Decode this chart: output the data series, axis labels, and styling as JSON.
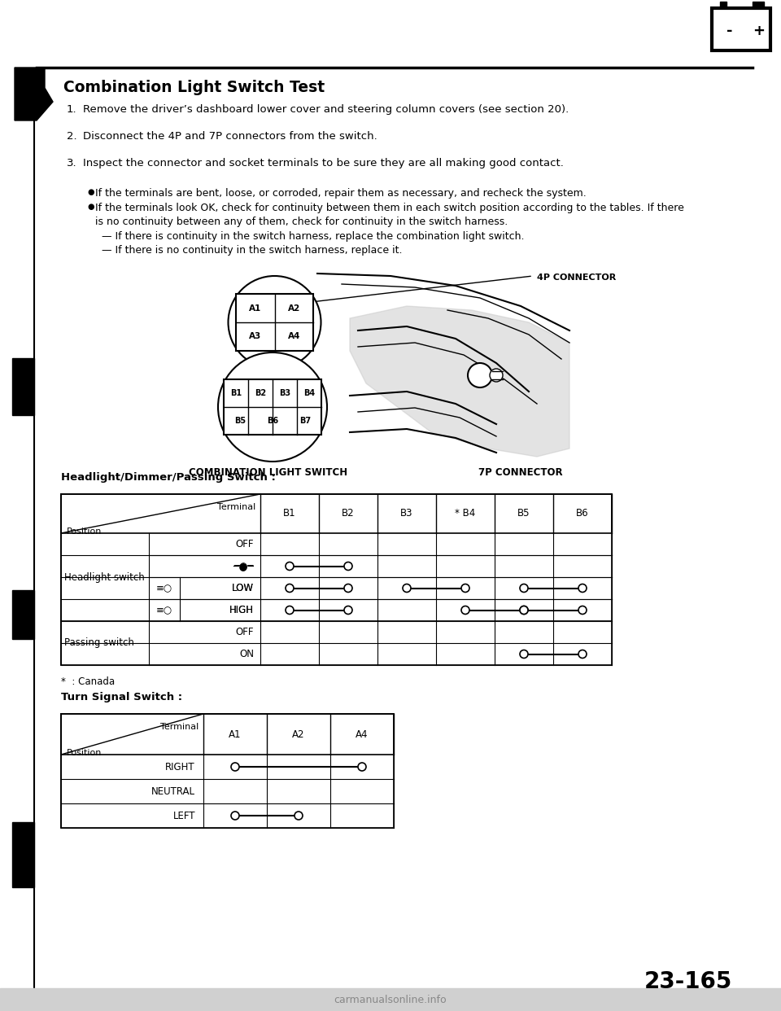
{
  "title": "Combination Light Switch Test",
  "page_number": "23-165",
  "steps": [
    "Remove the driver’s dashboard lower cover and steering column covers (see section 20).",
    "Disconnect the 4P and 7P connectors from the switch.",
    "Inspect the connector and socket terminals to be sure they are all making good contact."
  ],
  "bullets": [
    "If the terminals are bent, loose, or corroded, repair them as necessary, and recheck the system.",
    "If the terminals look OK, check for continuity between them in each switch position according to the tables. If there is no continuity between any of them, check for continuity in the switch harness.",
    "-- If there is continuity in the switch harness, replace the combination light switch.",
    "-- If there is no continuity in the switch harness, replace it."
  ],
  "table1_title": "Headlight/Dimmer/Passing Switch :",
  "table1_headers": [
    "B1",
    "B2",
    "B3",
    "* B4",
    "B5",
    "B6"
  ],
  "table2_title": "Turn Signal Switch :",
  "table2_headers": [
    "A1",
    "A2",
    "A4"
  ],
  "canada_note": "*  : Canada",
  "bg_color": "#ffffff",
  "text_color": "#000000",
  "connector_4p_label": "4P CONNECTOR",
  "connector_7p_label": "7P CONNECTOR",
  "switch_label": "COMBINATION LIGHT SWITCH"
}
